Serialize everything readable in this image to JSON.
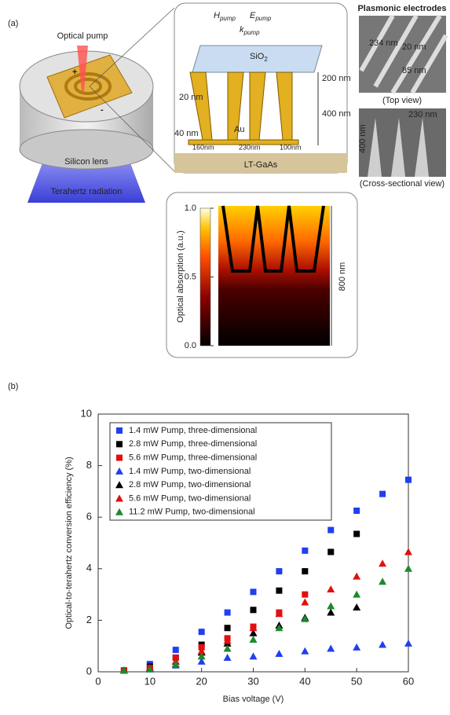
{
  "panel_a": {
    "label": "(a)",
    "device": {
      "pump": "Optical pump",
      "plus": "+",
      "minus": "-",
      "lens": "Silicon lens",
      "radiation": "Terahertz radiation"
    },
    "schematic": {
      "field_h": [
        "H",
        "pump"
      ],
      "field_e": [
        "E",
        "pump"
      ],
      "field_k": [
        "k",
        "pump"
      ],
      "oxide": [
        "SiO",
        "2"
      ],
      "oxide_thickness": "200 nm",
      "electrode_height": "400 nm",
      "tip_width": "20 nm",
      "base_thickness": "40 nm",
      "metal": "Au",
      "width_a": "160nm",
      "width_b": "230nm",
      "width_c": "100nm",
      "substrate": "LT-GaAs"
    },
    "sem": {
      "title": "Plasmonic electrodes",
      "top_labels": [
        "234 nm",
        "20 nm",
        "85 nm"
      ],
      "top_caption": "(Top view)",
      "cross_labels": [
        "230 nm",
        "400 nm"
      ],
      "cross_caption": "(Cross-sectional view)"
    },
    "absorption": {
      "colorbar_label": "Optical absorption (a.u.)",
      "lim": [
        0,
        1
      ],
      "ticks": [
        {
          "value": 0,
          "label": "0.0"
        },
        {
          "value": 0.5,
          "label": "0.5"
        },
        {
          "value": 1,
          "label": "1.0"
        }
      ],
      "depth": "800 nm"
    }
  },
  "chart_data": {
    "type": "scatter",
    "panel_label": "(b)",
    "x_label": "Bias voltage (V)",
    "y_label": "Optical-to-terahertz conversion efficiency (%)",
    "xlim": [
      0,
      60
    ],
    "xticks": [
      0,
      10,
      20,
      30,
      40,
      50,
      60
    ],
    "ylim": [
      0,
      10
    ],
    "yticks": [
      0,
      2,
      4,
      6,
      8,
      10
    ],
    "legend": "upper left",
    "series": [
      {
        "name": "1.4 mW Pump, three-dimensional",
        "color": "#1f3ff0",
        "marker": "square",
        "x": [
          5,
          10,
          15,
          20,
          25,
          30,
          35,
          40,
          45,
          50,
          55,
          60
        ],
        "values": [
          0.05,
          0.3,
          0.85,
          1.55,
          2.3,
          3.1,
          3.9,
          4.7,
          5.5,
          6.25,
          6.9,
          7.45
        ]
      },
      {
        "name": "2.8 mW Pump, three-dimensional",
        "color": "#000000",
        "marker": "square",
        "x": [
          5,
          10,
          15,
          20,
          25,
          30,
          35,
          40,
          45,
          50
        ],
        "values": [
          0.05,
          0.2,
          0.55,
          1.05,
          1.7,
          2.4,
          3.15,
          3.9,
          4.65,
          5.35
        ]
      },
      {
        "name": "5.6 mW Pump, three-dimensional",
        "color": "#e01010",
        "marker": "square",
        "x": [
          5,
          10,
          15,
          20,
          25,
          30,
          35,
          40
        ],
        "values": [
          0.05,
          0.15,
          0.55,
          0.95,
          1.3,
          1.75,
          2.3,
          3.0
        ]
      },
      {
        "name": "1.4 mW Pump, two-dimensional",
        "color": "#1f3ff0",
        "marker": "triangle",
        "x": [
          5,
          10,
          15,
          20,
          25,
          30,
          35,
          40,
          45,
          50,
          55,
          60
        ],
        "values": [
          0.05,
          0.1,
          0.25,
          0.4,
          0.55,
          0.6,
          0.7,
          0.8,
          0.9,
          0.95,
          1.05,
          1.1
        ]
      },
      {
        "name": "2.8 mW Pump, two-dimensional",
        "color": "#000000",
        "marker": "triangle",
        "x": [
          5,
          10,
          15,
          20,
          25,
          30,
          35,
          40,
          45,
          50
        ],
        "values": [
          0.05,
          0.15,
          0.4,
          0.75,
          1.1,
          1.5,
          1.8,
          2.1,
          2.3,
          2.5
        ]
      },
      {
        "name": "5.6 mW Pump, two-dimensional",
        "color": "#e01010",
        "marker": "triangle",
        "x": [
          5,
          10,
          15,
          20,
          25,
          30,
          35,
          40,
          45,
          50,
          55,
          60
        ],
        "values": [
          0.05,
          0.15,
          0.4,
          0.8,
          1.2,
          1.7,
          2.25,
          2.7,
          3.2,
          3.7,
          4.2,
          4.65
        ]
      },
      {
        "name": "11.2 mW Pump, two-dimensional",
        "color": "#1c8a2e",
        "marker": "triangle",
        "x": [
          5,
          10,
          15,
          20,
          25,
          30,
          35,
          40,
          45,
          50,
          55,
          60
        ],
        "values": [
          0.05,
          0.1,
          0.3,
          0.6,
          0.9,
          1.25,
          1.7,
          2.05,
          2.55,
          3.0,
          3.5,
          4.0
        ]
      }
    ]
  }
}
